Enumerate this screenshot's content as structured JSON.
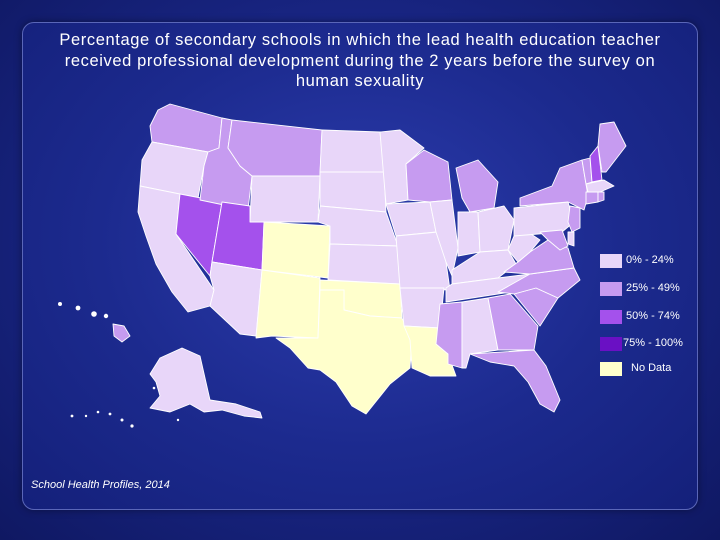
{
  "title": "Percentage of secondary schools in which the lead health education teacher\nreceived professional development during the 2 years before the survey on\nhuman sexuality",
  "source": "School Health Profiles, 2014",
  "colors": {
    "c1": "#e8d6f9",
    "c2": "#c69bf0",
    "c3": "#a451ec",
    "c4": "#6a10c4",
    "nd": "#ffffcc"
  },
  "legend": [
    {
      "label": "0% - 24%",
      "key": "c1"
    },
    {
      "label": "25% - 49%",
      "key": "c2"
    },
    {
      "label": "50% - 74%",
      "key": "c3"
    },
    {
      "label": "75% - 100%",
      "key": "c4"
    },
    {
      "label": "No Data",
      "key": "nd"
    }
  ],
  "states": {
    "WA": "c2",
    "OR": "c1",
    "CA": "c1",
    "NV": "c3",
    "ID": "c2",
    "MT": "c2",
    "WY": "c1",
    "UT": "c3",
    "AZ": "c1",
    "CO": "nd",
    "NM": "nd",
    "ND": "c1",
    "SD": "c1",
    "NE": "c1",
    "KS": "c1",
    "OK": "nd",
    "TX": "nd",
    "MN": "c1",
    "IA": "c1",
    "MO": "c1",
    "AR": "c1",
    "LA": "nd",
    "WI": "c2",
    "IL": "c1",
    "MI": "c2",
    "IN": "c1",
    "OH": "c1",
    "KY": "c1",
    "TN": "c1",
    "MS": "c2",
    "AL": "c1",
    "GA": "c2",
    "FL": "c2",
    "SC": "c2",
    "NC": "c2",
    "VA": "c2",
    "WV": "c1",
    "PA": "c1",
    "NY": "c2",
    "VT": "c2",
    "NH": "c3",
    "ME": "c2",
    "MA": "c1",
    "CT": "c2",
    "RI": "c2",
    "NJ": "c2",
    "DE": "c1",
    "MD": "c2",
    "AK": "c1",
    "HI": "c2"
  }
}
